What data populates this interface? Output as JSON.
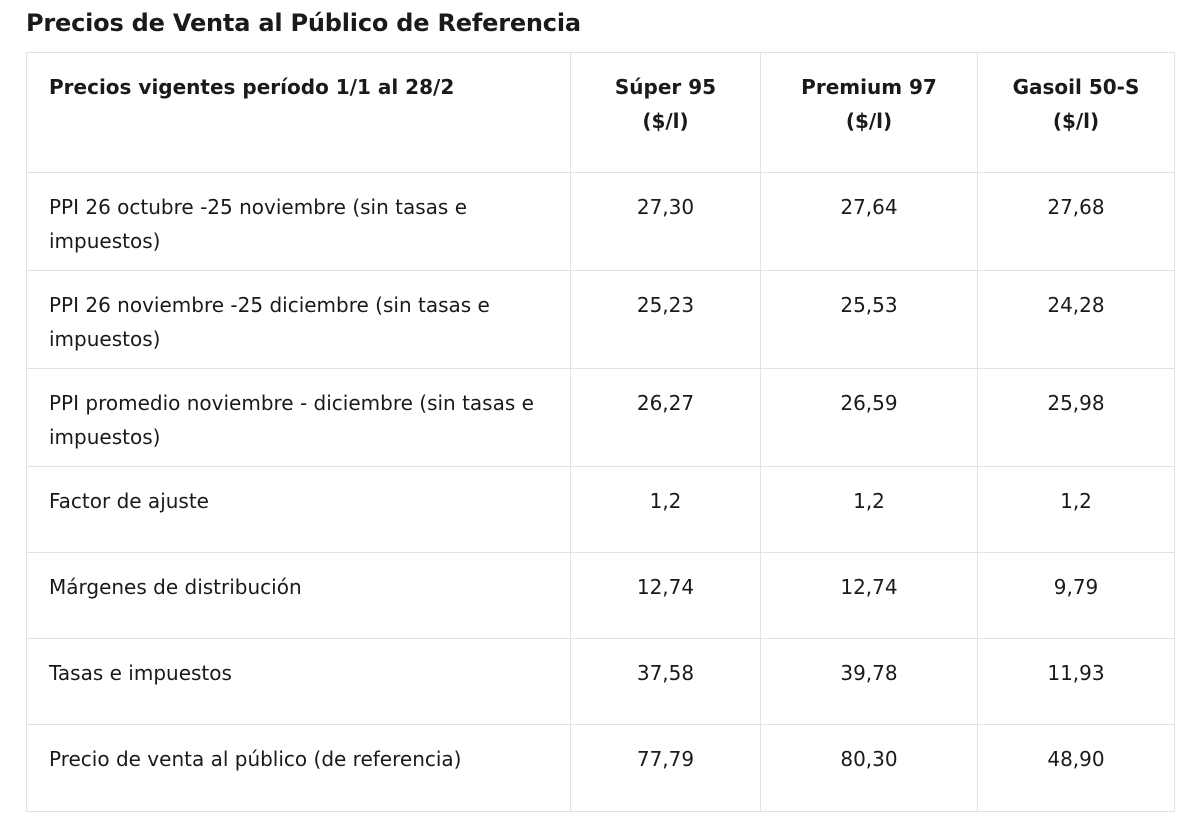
{
  "title": "Precios de Venta al Público de Referencia",
  "table": {
    "header": {
      "label": "Precios vigentes período 1/1 al 28/2",
      "columns": [
        {
          "name": "Súper 95",
          "unit": "($/l)"
        },
        {
          "name": "Premium 97",
          "unit": "($/l)"
        },
        {
          "name": "Gasoil 50-S",
          "unit": "($/l)"
        }
      ]
    },
    "rows": [
      {
        "label": "PPI 26 octubre -25 noviembre (sin tasas e impuestos)",
        "values": [
          "27,30",
          "27,64",
          "27,68"
        ]
      },
      {
        "label": "PPI 26 noviembre -25 diciembre (sin tasas e impuestos)",
        "values": [
          "25,23",
          "25,53",
          "24,28"
        ]
      },
      {
        "label": "PPI promedio noviembre - diciembre (sin tasas e impuestos)",
        "values": [
          "26,27",
          "26,59",
          "25,98"
        ]
      },
      {
        "label": "Factor de ajuste",
        "values": [
          "1,2",
          "1,2",
          "1,2"
        ]
      },
      {
        "label": "Márgenes de distribución",
        "values": [
          "12,74",
          "12,74",
          "9,79"
        ]
      },
      {
        "label": "Tasas e impuestos",
        "values": [
          "37,58",
          "39,78",
          "11,93"
        ]
      },
      {
        "label": "Precio de venta al público (de referencia)",
        "values": [
          "77,79",
          "80,30",
          "48,90"
        ],
        "bold": true
      }
    ]
  }
}
